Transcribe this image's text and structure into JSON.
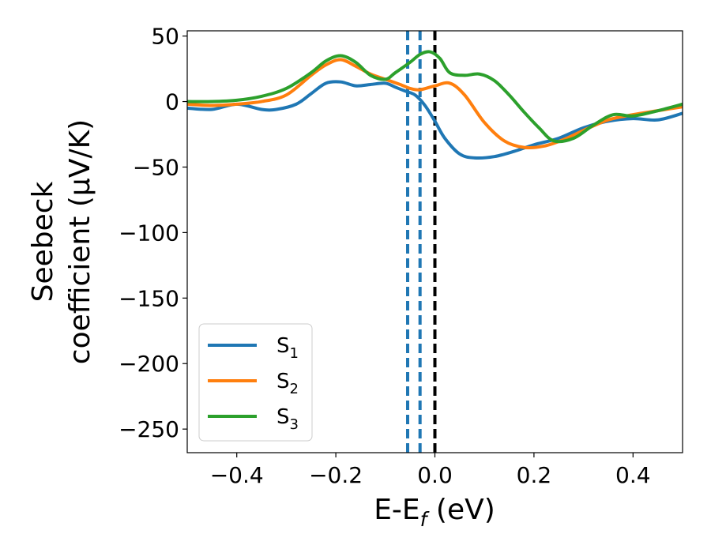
{
  "chart_data": {
    "type": "line",
    "xlabel_main": "E-E",
    "xlabel_sub": "f",
    "xlabel_unit": " (eV)",
    "ylabel_line1": "Seebeck",
    "ylabel_line2": "coefficient  (μV/K)",
    "xlim": [
      -0.5,
      0.5
    ],
    "ylim": [
      -268,
      54
    ],
    "xticks": [
      -0.4,
      -0.2,
      0.0,
      0.2,
      0.4
    ],
    "xtick_labels": [
      "−0.4",
      "−0.2",
      "0.0",
      "0.2",
      "0.4"
    ],
    "yticks": [
      50,
      0,
      -50,
      -100,
      -150,
      -200,
      -250
    ],
    "ytick_labels": [
      "50",
      "0",
      "−50",
      "−100",
      "−150",
      "−200",
      "−250"
    ],
    "grid": false,
    "legend_position": "lower-left",
    "series": [
      {
        "name": "S",
        "subscript": "1",
        "color": "#1f77b4",
        "x": [
          -0.5,
          -0.45,
          -0.4,
          -0.35,
          -0.32,
          -0.28,
          -0.25,
          -0.22,
          -0.19,
          -0.16,
          -0.13,
          -0.1,
          -0.08,
          -0.06,
          -0.04,
          -0.02,
          0.0,
          0.02,
          0.05,
          0.08,
          0.12,
          0.16,
          0.2,
          0.25,
          0.3,
          0.35,
          0.4,
          0.45,
          0.5
        ],
        "y": [
          -5,
          -6,
          -2,
          -6,
          -6,
          -2,
          6,
          14,
          15,
          12,
          13,
          14,
          11,
          8,
          5,
          -3,
          -15,
          -28,
          -40,
          -43,
          -42,
          -38,
          -33,
          -28,
          -20,
          -15,
          -13,
          -14,
          -9
        ]
      },
      {
        "name": "S",
        "subscript": "2",
        "color": "#ff7f0e",
        "x": [
          -0.5,
          -0.45,
          -0.4,
          -0.35,
          -0.3,
          -0.25,
          -0.22,
          -0.19,
          -0.16,
          -0.13,
          -0.1,
          -0.07,
          -0.05,
          -0.03,
          0.0,
          0.03,
          0.06,
          0.1,
          0.14,
          0.18,
          0.22,
          0.26,
          0.3,
          0.35,
          0.4,
          0.45,
          0.5
        ],
        "y": [
          -2,
          -3,
          -2,
          0,
          5,
          20,
          28,
          32,
          27,
          21,
          17,
          13,
          10,
          9,
          12,
          14,
          5,
          -16,
          -30,
          -35,
          -34,
          -29,
          -22,
          -14,
          -10,
          -7,
          -4
        ]
      },
      {
        "name": "S",
        "subscript": "3",
        "color": "#2ca02c",
        "x": [
          -0.5,
          -0.45,
          -0.4,
          -0.35,
          -0.3,
          -0.25,
          -0.22,
          -0.19,
          -0.16,
          -0.13,
          -0.1,
          -0.08,
          -0.05,
          -0.03,
          -0.01,
          0.01,
          0.03,
          0.06,
          0.09,
          0.12,
          0.15,
          0.18,
          0.21,
          0.24,
          0.28,
          0.32,
          0.36,
          0.4,
          0.45,
          0.5
        ],
        "y": [
          0,
          0,
          1,
          4,
          10,
          22,
          31,
          35,
          30,
          20,
          17,
          22,
          30,
          36,
          38,
          33,
          22,
          20,
          21,
          16,
          5,
          -8,
          -20,
          -30,
          -28,
          -18,
          -10,
          -11,
          -7,
          -2
        ]
      }
    ],
    "vlines": [
      {
        "x": -0.055,
        "color": "#1f77b4",
        "style": "dashed"
      },
      {
        "x": -0.03,
        "color": "#1f77b4",
        "style": "dashed"
      },
      {
        "x": 0.0,
        "color": "#000000",
        "style": "dashed"
      }
    ]
  }
}
